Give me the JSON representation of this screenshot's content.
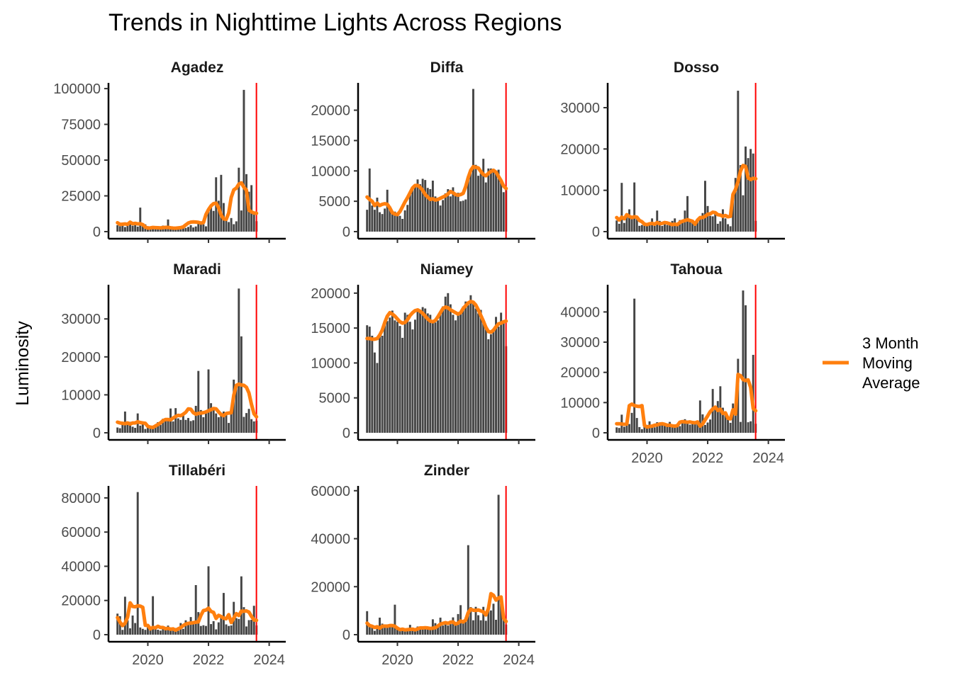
{
  "chart_data": {
    "type": "bar",
    "title": "Trends in Nighttime Lights Across Regions",
    "ylabel": "Luminosity",
    "xlabel": "",
    "legend": {
      "label_lines": [
        "3 Month",
        "Moving",
        "Average"
      ],
      "color": "#ff7f0e",
      "position": "right"
    },
    "bar_color": "#454545",
    "line_color": "#ff7f0e",
    "vline_color": "#ff0000",
    "vline_x": 2023.58,
    "grid": false,
    "x_start": 2019.0,
    "x_step": 0.08333,
    "xlim": [
      2018.75,
      2024.5
    ],
    "x_ticks": [
      2020,
      2022,
      2024
    ],
    "panels": [
      {
        "name": "Agadez",
        "ylim": [
          0,
          104000
        ],
        "y_ticks": [
          0,
          25000,
          50000,
          75000,
          100000
        ],
        "x_tick_labels_shown": false,
        "values": [
          4500,
          3800,
          5500,
          3200,
          4800,
          6200,
          4100,
          4600,
          3500,
          16800,
          4200,
          5100,
          3800,
          2100,
          3600,
          2600,
          2300,
          3000,
          4200,
          2500,
          8500,
          2800,
          2400,
          2900,
          3100,
          2700,
          2400,
          2600,
          3300,
          4500,
          2900,
          3600,
          6500,
          7000,
          5100,
          3700,
          14400,
          17900,
          14500,
          38000,
          21600,
          39700,
          20000,
          7900,
          6700,
          9500,
          5200,
          7200,
          44700,
          14800,
          99100,
          40200,
          27900,
          32500,
          14000,
          7300
        ],
        "moving_average": [
          6200,
          5100,
          5200,
          5400,
          5100,
          6600,
          5500,
          5800,
          5400,
          5500,
          4900,
          3200,
          2500,
          2600,
          2900,
          2800,
          2700,
          2600,
          2800,
          3000,
          3000,
          2700,
          2500,
          2400,
          2600,
          2800,
          3300,
          4700,
          6000,
          6600,
          6800,
          6700,
          6500,
          6000,
          6300,
          12000,
          15400,
          18000,
          19600,
          19900,
          16800,
          11500,
          8900,
          8600,
          13000,
          24000,
          29200,
          30400,
          33200,
          34100,
          31000,
          29000,
          15000,
          13800,
          13000,
          12800
        ]
      },
      {
        "name": "Diffa",
        "ylim": [
          0,
          24500
        ],
        "y_ticks": [
          0,
          5000,
          10000,
          15000,
          20000
        ],
        "x_tick_labels_shown": false,
        "values": [
          3600,
          10400,
          4300,
          3600,
          5600,
          3200,
          2900,
          3800,
          6900,
          4200,
          3100,
          3300,
          3000,
          2600,
          2100,
          3500,
          4400,
          6100,
          7300,
          7500,
          8600,
          7800,
          8700,
          8500,
          7200,
          7000,
          8400,
          5800,
          5600,
          4300,
          5200,
          6300,
          7000,
          5800,
          7300,
          6000,
          6400,
          5000,
          5100,
          5300,
          9000,
          10100,
          23500,
          11000,
          9200,
          9600,
          12000,
          8100,
          10400,
          10400,
          9800,
          9900,
          10200,
          8700,
          6500,
          6900
        ],
        "moving_average": [
          5700,
          5300,
          5000,
          4300,
          4700,
          4300,
          4500,
          4600,
          4500,
          3900,
          3100,
          2900,
          2800,
          3300,
          4100,
          4900,
          5600,
          6400,
          7200,
          7600,
          7600,
          7300,
          6800,
          6100,
          5700,
          5300,
          5400,
          5200,
          5300,
          5500,
          5700,
          5900,
          6200,
          6600,
          6400,
          6100,
          6000,
          6100,
          6300,
          7400,
          8900,
          10100,
          10700,
          10600,
          10500,
          9900,
          9400,
          9200,
          9600,
          9900,
          10100,
          9800,
          9100,
          8400,
          7500,
          7100
        ]
      },
      {
        "name": "Dosso",
        "ylim": [
          0,
          36000
        ],
        "y_ticks": [
          0,
          10000,
          20000,
          30000
        ],
        "x_tick_labels_shown": false,
        "values": [
          2700,
          1900,
          11800,
          2100,
          4400,
          5400,
          3800,
          11900,
          3500,
          1400,
          1600,
          2100,
          1900,
          1600,
          3200,
          1400,
          5100,
          2600,
          1400,
          2500,
          1600,
          1600,
          2600,
          3200,
          1500,
          2800,
          2300,
          5100,
          8600,
          2400,
          2500,
          1900,
          2700,
          3300,
          4500,
          12300,
          6200,
          3800,
          3700,
          4700,
          1900,
          2500,
          5400,
          3200,
          1800,
          1300,
          7700,
          13000,
          34100,
          16100,
          8800,
          20600,
          17800,
          20000,
          18900,
          2600
        ],
        "moving_average": [
          3400,
          2800,
          3500,
          3100,
          4100,
          3700,
          3400,
          3600,
          3500,
          2700,
          2400,
          1800,
          1700,
          1900,
          2000,
          1800,
          2200,
          1900,
          2000,
          2200,
          2100,
          1900,
          1700,
          1800,
          1700,
          2200,
          2500,
          2700,
          2900,
          2700,
          2500,
          1800,
          2800,
          3400,
          3400,
          3700,
          4200,
          4300,
          4700,
          4600,
          4100,
          4000,
          3700,
          3900,
          3600,
          3700,
          9000,
          10200,
          12100,
          14700,
          16000,
          15800,
          13000,
          12600,
          12900,
          12800
        ]
      },
      {
        "name": "Maradi",
        "ylim": [
          0,
          39000
        ],
        "y_ticks": [
          0,
          10000,
          20000,
          30000
        ],
        "x_tick_labels_shown": false,
        "values": [
          1400,
          1200,
          2600,
          5600,
          2400,
          2900,
          1600,
          1300,
          5100,
          1900,
          2600,
          1000,
          1600,
          1100,
          1600,
          1700,
          2800,
          2100,
          3700,
          3200,
          3600,
          6400,
          3000,
          6500,
          3800,
          3400,
          5100,
          3400,
          3900,
          3100,
          3300,
          7100,
          16300,
          6000,
          4100,
          5100,
          16700,
          7800,
          6600,
          5100,
          4100,
          5200,
          5600,
          4900,
          2600,
          6600,
          14000,
          12500,
          38000,
          25400,
          4200,
          5200,
          6300,
          3600,
          3000,
          3200
        ],
        "moving_average": [
          2800,
          2600,
          2500,
          2400,
          2600,
          2300,
          2600,
          2600,
          2900,
          2700,
          2600,
          2500,
          1700,
          1500,
          1400,
          1800,
          2200,
          2600,
          3200,
          3500,
          3500,
          3400,
          3900,
          4300,
          4600,
          4500,
          4900,
          5400,
          6300,
          6200,
          5300,
          4900,
          5100,
          5200,
          5300,
          5500,
          5800,
          6100,
          6400,
          6300,
          5500,
          4800,
          4500,
          5100,
          5200,
          5300,
          9900,
          12500,
          12800,
          12600,
          12500,
          12000,
          10500,
          7500,
          5000,
          4200
        ]
      },
      {
        "name": "Niamey",
        "ylim": [
          0,
          21200
        ],
        "y_ticks": [
          0,
          5000,
          10000,
          15000,
          20000
        ],
        "x_tick_labels_shown": false,
        "values": [
          15400,
          15200,
          13900,
          11500,
          10000,
          13800,
          13900,
          15500,
          16000,
          16500,
          17500,
          16100,
          15900,
          15300,
          13600,
          17200,
          16900,
          15900,
          14800,
          16200,
          17400,
          17600,
          18000,
          17800,
          17100,
          16900,
          16000,
          15800,
          16100,
          17200,
          18100,
          19500,
          20000,
          18400,
          16900,
          16100,
          17100,
          17000,
          18100,
          18800,
          18300,
          19700,
          18600,
          17800,
          17100,
          17600,
          15800,
          15000,
          13400,
          14100,
          14600,
          16600,
          15200,
          17200,
          15700,
          12400
        ],
        "moving_average": [
          13500,
          13500,
          13400,
          13400,
          13500,
          14000,
          14700,
          15800,
          16700,
          17200,
          17000,
          16700,
          16300,
          15900,
          15700,
          15800,
          16200,
          16800,
          17200,
          17500,
          17600,
          17400,
          17100,
          16700,
          16300,
          16000,
          15900,
          16100,
          16600,
          17200,
          17800,
          18000,
          17900,
          17600,
          17400,
          17200,
          17000,
          17200,
          17800,
          18200,
          18600,
          18800,
          18700,
          18300,
          17600,
          16800,
          16000,
          15100,
          14500,
          14400,
          14700,
          15200,
          15600,
          15700,
          15900,
          16000
        ]
      },
      {
        "name": "Tahoua",
        "ylim": [
          0,
          49000
        ],
        "y_ticks": [
          0,
          10000,
          20000,
          30000,
          40000
        ],
        "x_tick_labels_shown": true,
        "values": [
          1800,
          1600,
          6000,
          2000,
          4300,
          2900,
          6600,
          44400,
          4900,
          1900,
          1200,
          2800,
          2600,
          3800,
          2400,
          1800,
          3500,
          3000,
          2600,
          3100,
          2200,
          3600,
          2200,
          1900,
          2000,
          2200,
          4100,
          4500,
          3500,
          2700,
          3100,
          3500,
          4000,
          10700,
          6100,
          2600,
          3400,
          4400,
          14500,
          7700,
          10500,
          15400,
          8300,
          6800,
          4400,
          3300,
          9700,
          7900,
          24500,
          3600,
          47100,
          42200,
          3500,
          3800,
          25800,
          3000
        ],
        "moving_average": [
          3000,
          3000,
          2900,
          2800,
          2900,
          9000,
          9500,
          9000,
          8800,
          8700,
          9000,
          2400,
          1900,
          2100,
          2200,
          2500,
          2600,
          2900,
          3000,
          2800,
          2500,
          2500,
          2300,
          2200,
          2400,
          3500,
          3700,
          3600,
          3500,
          3600,
          3400,
          3300,
          3600,
          2200,
          2900,
          4300,
          5600,
          7000,
          7900,
          8500,
          7400,
          7800,
          6400,
          6600,
          4800,
          4600,
          7600,
          6200,
          19300,
          18900,
          17600,
          17300,
          17500,
          15000,
          8000,
          7300
        ]
      },
      {
        "name": "Tillabéri",
        "ylim": [
          0,
          87000
        ],
        "y_ticks": [
          0,
          20000,
          40000,
          60000,
          80000
        ],
        "x_tick_labels_shown": true,
        "values": [
          12300,
          10800,
          2800,
          22200,
          8400,
          3700,
          11200,
          6800,
          83400,
          4200,
          3400,
          2800,
          4400,
          2900,
          22500,
          3700,
          2900,
          2400,
          4400,
          3600,
          5300,
          2700,
          2300,
          3900,
          2300,
          6800,
          3400,
          8400,
          6700,
          10300,
          7300,
          29000,
          13200,
          5100,
          5500,
          5100,
          40000,
          6200,
          7900,
          3100,
          7200,
          10100,
          24400,
          6000,
          5100,
          5400,
          19200,
          9700,
          9200,
          34100,
          16100,
          4800,
          8500,
          8700,
          16900,
          5400
        ],
        "moving_average": [
          10000,
          7300,
          5300,
          6700,
          10300,
          18600,
          16500,
          16300,
          16900,
          16700,
          16000,
          5500,
          5400,
          3400,
          4200,
          4000,
          4900,
          4200,
          4200,
          3500,
          3700,
          3200,
          3400,
          2600,
          3400,
          4100,
          5300,
          6200,
          6600,
          6800,
          7000,
          7300,
          7500,
          11300,
          14100,
          14400,
          15500,
          13600,
          13000,
          9500,
          11300,
          10600,
          9600,
          9300,
          11700,
          7100,
          9700,
          12300,
          11200,
          13700,
          13700,
          13900,
          13200,
          10700,
          8600,
          8400
        ]
      },
      {
        "name": "Zinder",
        "ylim": [
          0,
          62000
        ],
        "y_ticks": [
          0,
          20000,
          40000,
          60000
        ],
        "x_tick_labels_shown": true,
        "values": [
          9800,
          4300,
          3400,
          1600,
          2400,
          7100,
          4600,
          2900,
          4300,
          3200,
          3800,
          12500,
          3300,
          1900,
          2900,
          2200,
          2400,
          4100,
          2300,
          2000,
          3400,
          2800,
          3200,
          2500,
          2800,
          2900,
          6400,
          4800,
          3300,
          7100,
          3800,
          5200,
          3800,
          4400,
          7200,
          4600,
          8600,
          12300,
          5600,
          7100,
          37300,
          11500,
          6000,
          11600,
          8100,
          6000,
          11600,
          5800,
          12300,
          10100,
          12900,
          6200,
          58300,
          12900,
          7100,
          4200
        ],
        "moving_average": [
          4800,
          3800,
          3500,
          3000,
          3300,
          2700,
          3500,
          3600,
          3500,
          3800,
          3800,
          3500,
          2700,
          2100,
          2300,
          2000,
          2100,
          2200,
          2300,
          2000,
          2400,
          2800,
          2800,
          2900,
          2800,
          2600,
          2700,
          2900,
          3600,
          4400,
          4700,
          5000,
          4700,
          5200,
          5300,
          4400,
          4800,
          5700,
          5300,
          6100,
          9200,
          10600,
          10200,
          10100,
          10300,
          9900,
          9500,
          8200,
          10900,
          17100,
          16400,
          14400,
          15300,
          15700,
          6800,
          5500
        ]
      }
    ]
  }
}
